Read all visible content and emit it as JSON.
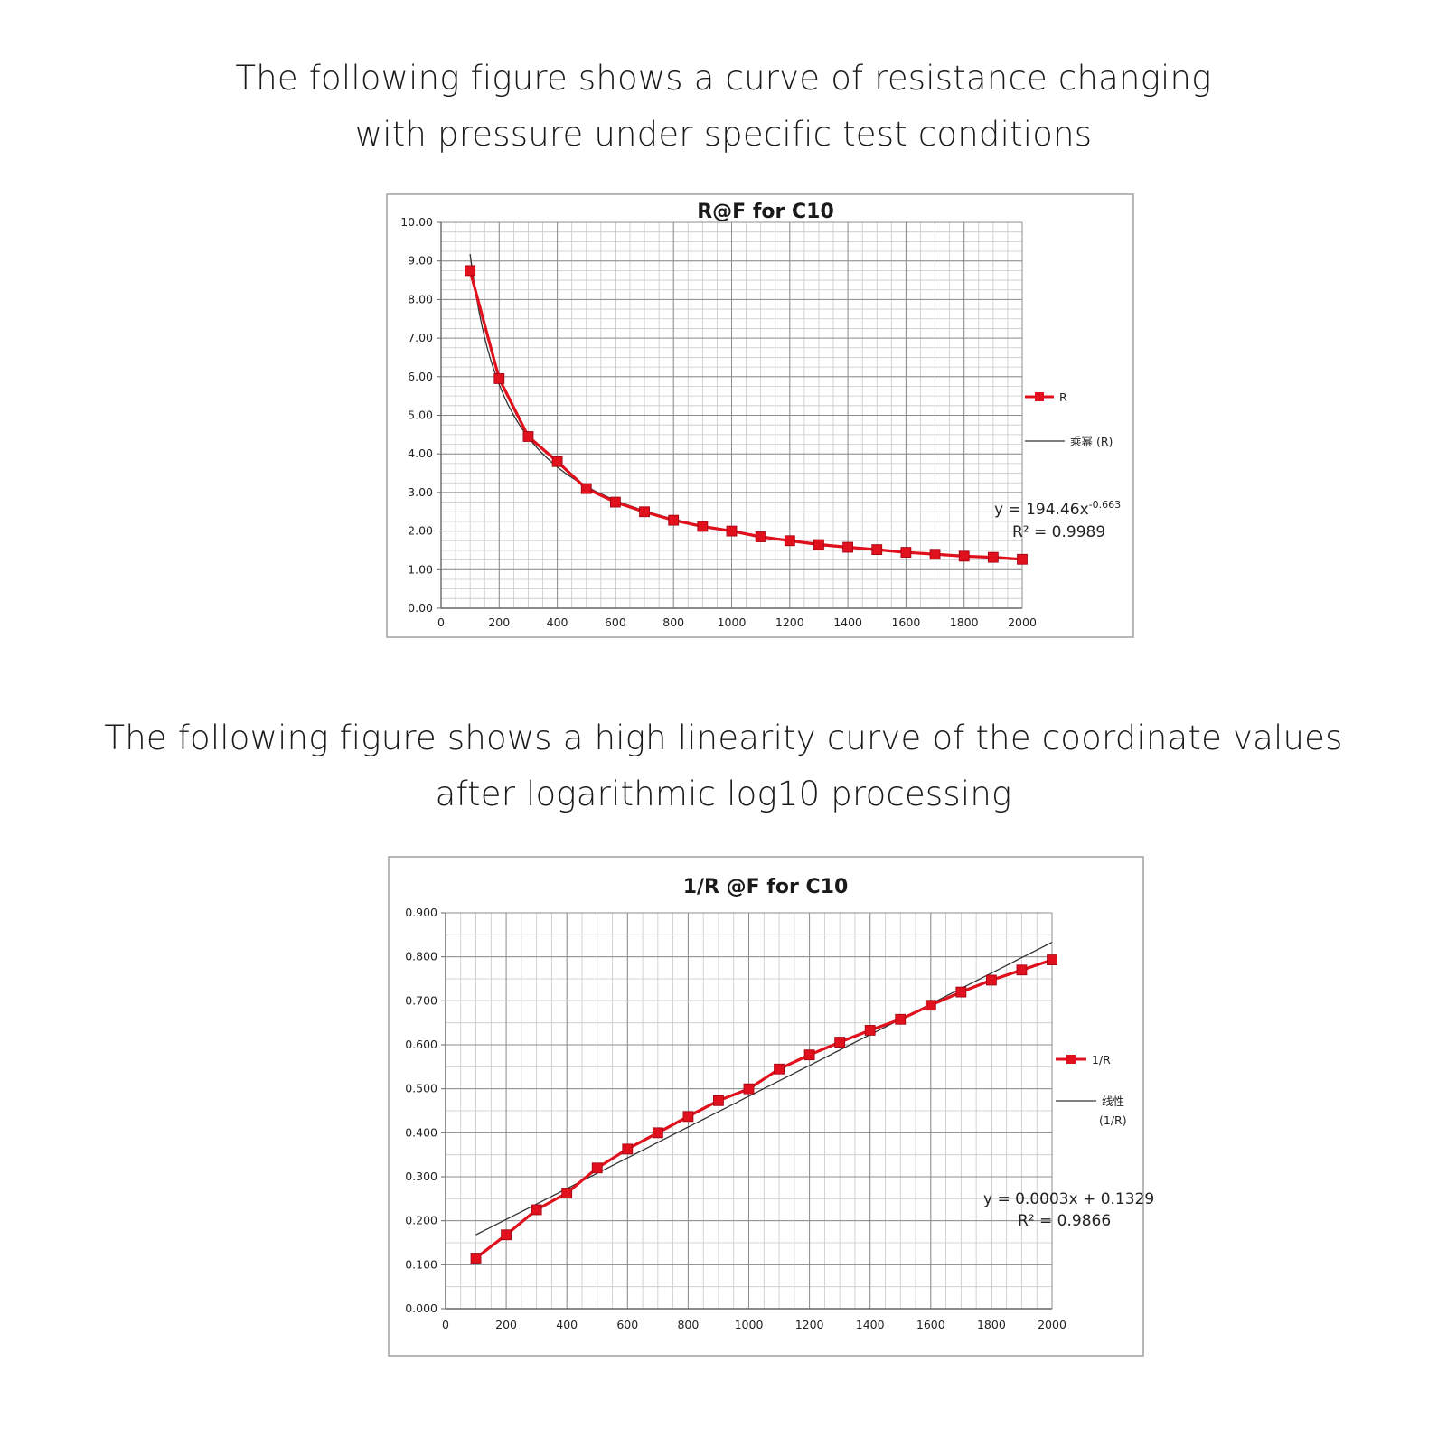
{
  "captions": {
    "top_line1": "The following figure shows a curve of resistance changing",
    "top_line2": "with pressure under specific test conditions",
    "bottom_line1": "The following figure shows a high linearity curve of the coordinate values",
    "bottom_line2": "after logarithmic log10 processing"
  },
  "colors": {
    "series": "#e0101c",
    "trend": "#333333",
    "grid": "#8c8c8c"
  },
  "chart_data": [
    {
      "type": "line",
      "title": "R@F  for C10",
      "xlabel": "",
      "ylabel": "",
      "xlim": [
        0,
        2000
      ],
      "ylim": [
        0,
        10
      ],
      "x_ticks": [
        0,
        200,
        400,
        600,
        800,
        1000,
        1200,
        1400,
        1600,
        1800,
        2000
      ],
      "x_tick_labels": [
        "0",
        "200",
        "400",
        "600",
        "800",
        "1000",
        "1200",
        "1400",
        "1600",
        "1800",
        "2000"
      ],
      "y_ticks": [
        0,
        1,
        2,
        3,
        4,
        5,
        6,
        7,
        8,
        9,
        10
      ],
      "y_tick_labels": [
        "0.00",
        "1.00",
        "2.00",
        "3.00",
        "4.00",
        "5.00",
        "6.00",
        "7.00",
        "8.00",
        "9.00",
        "10.00"
      ],
      "grid": true,
      "legend_position": "right",
      "series": [
        {
          "name": "R",
          "x": [
            100,
            200,
            300,
            400,
            500,
            600,
            700,
            800,
            900,
            1000,
            1100,
            1200,
            1300,
            1400,
            1500,
            1600,
            1700,
            1800,
            1900,
            2000
          ],
          "values": [
            8.75,
            5.95,
            4.45,
            3.8,
            3.1,
            2.75,
            2.5,
            2.28,
            2.12,
            2.0,
            1.85,
            1.75,
            1.65,
            1.58,
            1.52,
            1.45,
            1.4,
            1.35,
            1.32,
            1.27
          ]
        }
      ],
      "trendline": {
        "name": "乘幂 (R)",
        "kind": "power",
        "coef": 194.46,
        "exp": -0.663,
        "x_range": [
          100,
          2000
        ]
      },
      "equation": {
        "prefix": "y = 194.46x",
        "sup": "-0.663",
        "r2": "R² = 0.9989"
      }
    },
    {
      "type": "line",
      "title": "1/R @F for C10",
      "xlabel": "",
      "ylabel": "",
      "xlim": [
        0,
        2000
      ],
      "ylim": [
        0,
        0.9
      ],
      "x_ticks": [
        0,
        200,
        400,
        600,
        800,
        1000,
        1200,
        1400,
        1600,
        1800,
        2000
      ],
      "x_tick_labels": [
        "0",
        "200",
        "400",
        "600",
        "800",
        "1000",
        "1200",
        "1400",
        "1600",
        "1800",
        "2000"
      ],
      "y_ticks": [
        0,
        0.1,
        0.2,
        0.3,
        0.4,
        0.5,
        0.6,
        0.7,
        0.8,
        0.9
      ],
      "y_tick_labels": [
        "0.000",
        "0.100",
        "0.200",
        "0.300",
        "0.400",
        "0.500",
        "0.600",
        "0.700",
        "0.800",
        "0.900"
      ],
      "grid": true,
      "legend_position": "right",
      "series": [
        {
          "name": "1/R",
          "x": [
            100,
            200,
            300,
            400,
            500,
            600,
            700,
            800,
            900,
            1000,
            1100,
            1200,
            1300,
            1400,
            1500,
            1600,
            1700,
            1800,
            1900,
            2000
          ],
          "values": [
            0.115,
            0.168,
            0.225,
            0.263,
            0.32,
            0.363,
            0.4,
            0.437,
            0.473,
            0.5,
            0.545,
            0.577,
            0.606,
            0.633,
            0.658,
            0.69,
            0.72,
            0.747,
            0.77,
            0.793
          ]
        }
      ],
      "trendline": {
        "name_line1": "线性",
        "name_line2": "(1/R)",
        "kind": "linear",
        "slope": 0.00035,
        "intercept": 0.133,
        "x_range": [
          100,
          2000
        ]
      },
      "equation": {
        "line1": "y = 0.0003x + 0.1329",
        "r2": "R² = 0.9866"
      }
    }
  ]
}
